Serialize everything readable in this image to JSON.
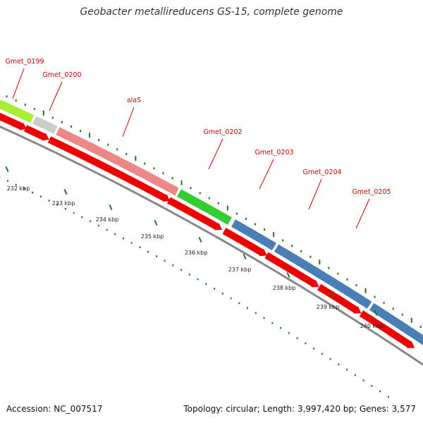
{
  "title": "Geobacter metallireducens GS-15, complete genome",
  "footer": {
    "accession": "Accession: NC_007517",
    "summary": "Topology: circular; Length: 3,997,420 bp; Genes: 3,577"
  },
  "colors": {
    "cds_arrow": "#ee0000",
    "backbone": "#888888",
    "gene_label": "#cc0000",
    "dots": "#1a7a1a",
    "cog_feature_green": "#33cc33",
    "cog_feature_blue": "#4a7fb5",
    "cog_feature_pink": "#ee8888",
    "cog_feature_grey": "#cccccc",
    "cog_feature_yellowgreen": "#aaee33"
  },
  "features": [
    {
      "name": "Gmet_0199",
      "color": "#aaee33"
    },
    {
      "name": "Gmet_0200",
      "color": "#cccccc"
    },
    {
      "name": "alaS",
      "color": "#ee8888"
    },
    {
      "name": "Gmet_0202",
      "color": "#33cc33"
    },
    {
      "name": "Gmet_0203",
      "color": "#4a7fb5"
    },
    {
      "name": "Gmet_0204",
      "color": "#4a7fb5"
    },
    {
      "name": "Gmet_0205",
      "color": "#4a7fb5"
    }
  ],
  "ticks": [
    "232 kbp",
    "233 kbp",
    "234 kbp",
    "235 kbp",
    "236 kbp",
    "237 kbp",
    "238 kbp",
    "239 kbp",
    "240 kbp"
  ]
}
